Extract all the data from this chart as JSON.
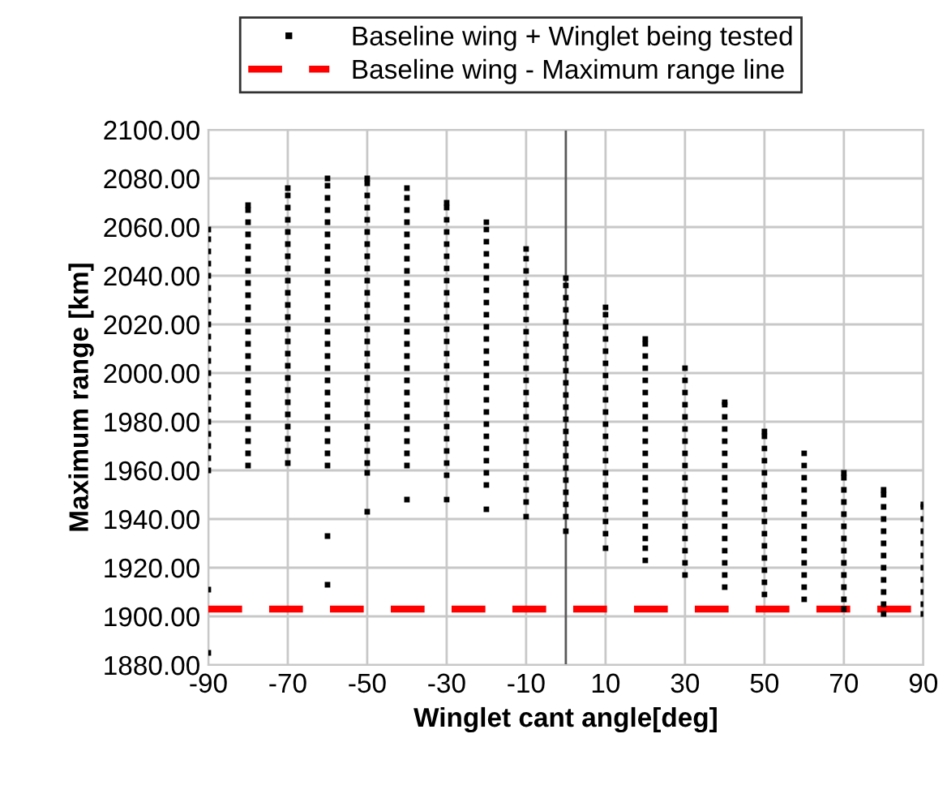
{
  "chart_data": {
    "type": "scatter",
    "xlabel": "Winglet cant angle[deg]",
    "ylabel": "Maximum range [km]",
    "xlim": [
      -90,
      90
    ],
    "xticks": [
      -90,
      -70,
      -50,
      -30,
      -10,
      10,
      30,
      50,
      70,
      90
    ],
    "ylim": [
      1880,
      2100
    ],
    "yticks": [
      {
        "value": 1880,
        "label": "1880.00"
      },
      {
        "value": 1900,
        "label": "1900.00"
      },
      {
        "value": 1920,
        "label": "1920.00"
      },
      {
        "value": 1940,
        "label": "1940.00"
      },
      {
        "value": 1960,
        "label": "1960.00"
      },
      {
        "value": 1980,
        "label": "1980.00"
      },
      {
        "value": 2000,
        "label": "2000.00"
      },
      {
        "value": 2020,
        "label": "2020.00"
      },
      {
        "value": 2040,
        "label": "2040.00"
      },
      {
        "value": 2060,
        "label": "2060.00"
      },
      {
        "value": 2080,
        "label": "2080.00"
      },
      {
        "value": 2100,
        "label": "2100.00"
      }
    ],
    "grid": true,
    "legend": "top",
    "marker": "square",
    "ref_lines": [
      {
        "axis": "y",
        "value": 1903,
        "label": "Baseline wing - Maximum range line",
        "color": "#ff0000",
        "line_style": "dashed"
      },
      {
        "axis": "x",
        "value": 0,
        "color": "#595959",
        "line_style": "solid"
      }
    ],
    "series": [
      {
        "name": "Baseline wing + Winglet being tested",
        "color": "#000000",
        "x": [
          -90,
          -90,
          -90,
          -90,
          -90,
          -90,
          -90,
          -90,
          -90,
          -90,
          -90,
          -90,
          -90,
          -90,
          -90,
          -90,
          -90,
          -90,
          -90,
          -90,
          -90,
          -90,
          -90,
          -80,
          -80,
          -80,
          -80,
          -80,
          -80,
          -80,
          -80,
          -80,
          -80,
          -80,
          -80,
          -80,
          -80,
          -80,
          -80,
          -80,
          -80,
          -80,
          -80,
          -80,
          -80,
          -80,
          -70,
          -70,
          -70,
          -70,
          -70,
          -70,
          -70,
          -70,
          -70,
          -70,
          -70,
          -70,
          -70,
          -70,
          -70,
          -70,
          -70,
          -70,
          -70,
          -70,
          -70,
          -70,
          -70,
          -70,
          -60,
          -60,
          -60,
          -60,
          -60,
          -60,
          -60,
          -60,
          -60,
          -60,
          -60,
          -60,
          -60,
          -60,
          -60,
          -60,
          -60,
          -60,
          -60,
          -60,
          -60,
          -60,
          -60,
          -60,
          -60,
          -60,
          -60,
          -50,
          -50,
          -50,
          -50,
          -50,
          -50,
          -50,
          -50,
          -50,
          -50,
          -50,
          -50,
          -50,
          -50,
          -50,
          -50,
          -50,
          -50,
          -50,
          -50,
          -50,
          -50,
          -50,
          -50,
          -50,
          -50,
          -50,
          -40,
          -40,
          -40,
          -40,
          -40,
          -40,
          -40,
          -40,
          -40,
          -40,
          -40,
          -40,
          -40,
          -40,
          -40,
          -40,
          -40,
          -40,
          -40,
          -40,
          -40,
          -40,
          -40,
          -40,
          -40,
          -30,
          -30,
          -30,
          -30,
          -30,
          -30,
          -30,
          -30,
          -30,
          -30,
          -30,
          -30,
          -30,
          -30,
          -30,
          -30,
          -30,
          -30,
          -30,
          -30,
          -30,
          -30,
          -30,
          -30,
          -30,
          -20,
          -20,
          -20,
          -20,
          -20,
          -20,
          -20,
          -20,
          -20,
          -20,
          -20,
          -20,
          -20,
          -20,
          -20,
          -20,
          -20,
          -20,
          -20,
          -20,
          -20,
          -20,
          -20,
          -20,
          -10,
          -10,
          -10,
          -10,
          -10,
          -10,
          -10,
          -10,
          -10,
          -10,
          -10,
          -10,
          -10,
          -10,
          -10,
          -10,
          -10,
          -10,
          -10,
          -10,
          -10,
          -10,
          -10,
          0,
          0,
          0,
          0,
          0,
          0,
          0,
          0,
          0,
          0,
          0,
          0,
          0,
          0,
          0,
          0,
          0,
          0,
          0,
          0,
          0,
          0,
          10,
          10,
          10,
          10,
          10,
          10,
          10,
          10,
          10,
          10,
          10,
          10,
          10,
          10,
          10,
          10,
          10,
          10,
          10,
          10,
          10,
          20,
          20,
          20,
          20,
          20,
          20,
          20,
          20,
          20,
          20,
          20,
          20,
          20,
          20,
          20,
          20,
          20,
          20,
          20,
          20,
          30,
          30,
          30,
          30,
          30,
          30,
          30,
          30,
          30,
          30,
          30,
          30,
          30,
          30,
          30,
          30,
          30,
          30,
          40,
          40,
          40,
          40,
          40,
          40,
          40,
          40,
          40,
          40,
          40,
          40,
          40,
          40,
          40,
          40,
          40,
          50,
          50,
          50,
          50,
          50,
          50,
          50,
          50,
          50,
          50,
          50,
          50,
          50,
          50,
          50,
          60,
          60,
          60,
          60,
          60,
          60,
          60,
          60,
          60,
          60,
          60,
          60,
          60,
          70,
          70,
          70,
          70,
          70,
          70,
          70,
          70,
          70,
          70,
          70,
          70,
          70,
          80,
          80,
          80,
          80,
          80,
          80,
          80,
          80,
          80,
          80,
          80,
          80,
          90,
          90,
          90,
          90,
          90,
          90,
          90,
          90,
          90,
          90,
          90
        ],
        "values": [
          1885,
          1911,
          1960,
          1965,
          1970,
          1975,
          1980,
          1985,
          1990,
          1995,
          2000,
          2005,
          2010,
          2015,
          2020,
          2025,
          2030,
          2035,
          2040,
          2045,
          2050,
          2055,
          2059,
          1962,
          1967,
          1972,
          1977,
          1982,
          1987,
          1992,
          1997,
          2002,
          2007,
          2012,
          2017,
          2022,
          2027,
          2032,
          2037,
          2042,
          2047,
          2052,
          2057,
          2062,
          2067,
          2069,
          1963,
          1968,
          1973,
          1978,
          1983,
          1988,
          1993,
          1998,
          2003,
          2008,
          2013,
          2018,
          2023,
          2028,
          2033,
          2038,
          2043,
          2048,
          2053,
          2058,
          2063,
          2068,
          2073,
          2076,
          1913,
          1933,
          1962,
          1967,
          1972,
          1977,
          1982,
          1987,
          1992,
          1997,
          2002,
          2007,
          2012,
          2017,
          2022,
          2027,
          2032,
          2037,
          2042,
          2047,
          2052,
          2057,
          2062,
          2067,
          2072,
          2077,
          2080,
          1943,
          1959,
          1963,
          1968,
          1973,
          1978,
          1983,
          1988,
          1993,
          1998,
          2003,
          2008,
          2013,
          2018,
          2023,
          2028,
          2033,
          2038,
          2043,
          2048,
          2053,
          2058,
          2063,
          2068,
          2073,
          2078,
          2080,
          1948,
          1962,
          1967,
          1972,
          1977,
          1982,
          1987,
          1992,
          1997,
          2002,
          2007,
          2012,
          2017,
          2022,
          2027,
          2032,
          2037,
          2042,
          2047,
          2052,
          2057,
          2062,
          2067,
          2072,
          2076,
          1948,
          1958,
          1963,
          1968,
          1973,
          1978,
          1983,
          1988,
          1993,
          1998,
          2003,
          2008,
          2013,
          2018,
          2023,
          2028,
          2033,
          2038,
          2043,
          2048,
          2053,
          2058,
          2063,
          2068,
          2070,
          1944,
          1954,
          1959,
          1964,
          1969,
          1974,
          1979,
          1984,
          1989,
          1994,
          1999,
          2004,
          2009,
          2014,
          2019,
          2024,
          2029,
          2034,
          2039,
          2044,
          2049,
          2054,
          2059,
          2062,
          1941,
          1947,
          1952,
          1957,
          1962,
          1967,
          1972,
          1977,
          1982,
          1987,
          1992,
          1997,
          2002,
          2007,
          2012,
          2017,
          2022,
          2027,
          2032,
          2037,
          2042,
          2047,
          2051,
          1935,
          1941,
          1946,
          1951,
          1956,
          1961,
          1966,
          1971,
          1976,
          1981,
          1986,
          1991,
          1996,
          2001,
          2006,
          2011,
          2016,
          2021,
          2026,
          2031,
          2036,
          2039,
          1928,
          1934,
          1939,
          1944,
          1949,
          1954,
          1959,
          1964,
          1969,
          1974,
          1979,
          1984,
          1989,
          1994,
          1999,
          2004,
          2009,
          2014,
          2019,
          2024,
          2027,
          1923,
          1928,
          1932,
          1937,
          1942,
          1947,
          1952,
          1957,
          1962,
          1967,
          1972,
          1977,
          1982,
          1987,
          1992,
          1997,
          2002,
          2007,
          2012,
          2014,
          1917,
          1922,
          1927,
          1932,
          1937,
          1942,
          1947,
          1952,
          1957,
          1962,
          1967,
          1972,
          1977,
          1982,
          1987,
          1992,
          1997,
          2002,
          1912,
          1917,
          1922,
          1927,
          1932,
          1937,
          1942,
          1947,
          1952,
          1957,
          1962,
          1967,
          1972,
          1977,
          1982,
          1987,
          1988,
          1909,
          1914,
          1919,
          1924,
          1929,
          1934,
          1939,
          1944,
          1949,
          1954,
          1959,
          1964,
          1969,
          1974,
          1976,
          1907,
          1912,
          1917,
          1922,
          1927,
          1932,
          1937,
          1942,
          1947,
          1952,
          1957,
          1962,
          1967,
          1903,
          1907,
          1912,
          1917,
          1922,
          1927,
          1932,
          1937,
          1942,
          1947,
          1952,
          1957,
          1959,
          1901,
          1905,
          1910,
          1915,
          1920,
          1925,
          1930,
          1935,
          1940,
          1945,
          1950,
          1952,
          1901,
          1905,
          1910,
          1915,
          1920,
          1925,
          1930,
          1935,
          1940,
          1945,
          1946
        ]
      }
    ]
  }
}
